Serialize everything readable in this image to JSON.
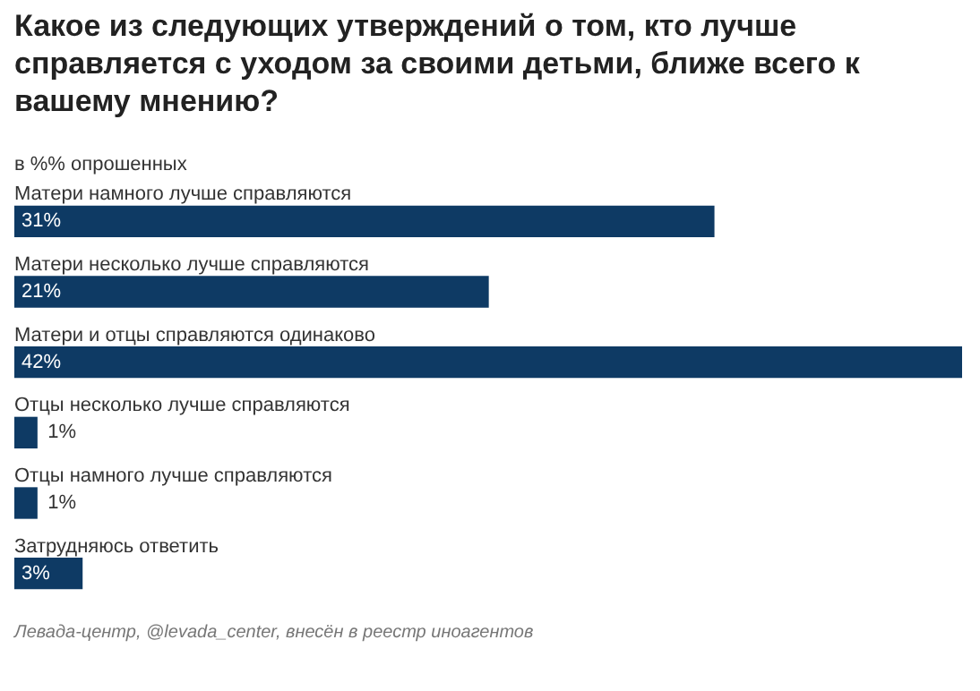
{
  "chart_data": {
    "type": "bar",
    "orientation": "horizontal",
    "title": "Какое из следующих утверждений о том, кто лучше справляется с уходом за своими детьми, ближе всего к вашему мнению?",
    "subtitle": "в %% опрошенных",
    "categories": [
      "Матери намного лучше справляются",
      "Матери несколько лучше справляются",
      "Матери и отцы справляются одинаково",
      "Отцы несколько лучше справляются",
      "Отцы намного лучше справляются",
      "Затрудняюсь ответить"
    ],
    "values": [
      31,
      21,
      42,
      1,
      1,
      3
    ],
    "value_labels": [
      "31%",
      "21%",
      "42%",
      "1%",
      "1%",
      "3%"
    ],
    "color": "#0e3a64",
    "annotations": [
      "Левада-центр, @levada_center, внесён в реестр иноагентов"
    ]
  }
}
